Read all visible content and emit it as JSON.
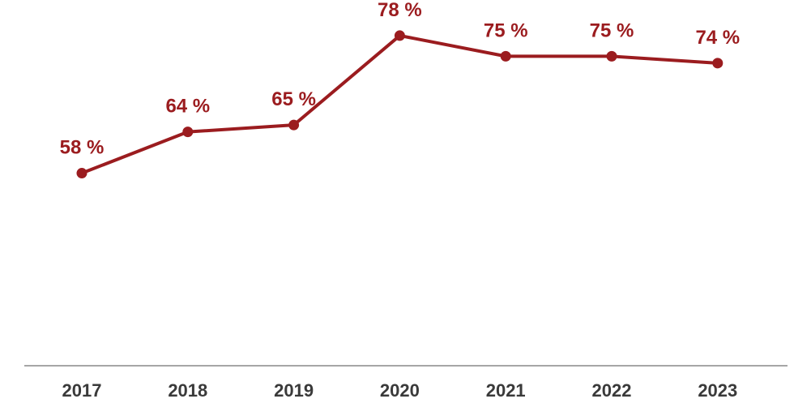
{
  "chart_data": {
    "type": "line",
    "categories": [
      "2017",
      "2018",
      "2019",
      "2020",
      "2021",
      "2022",
      "2023"
    ],
    "values": [
      58,
      64,
      65,
      78,
      75,
      75,
      74
    ],
    "data_labels": [
      "58 %",
      "64 %",
      "65 %",
      "78 %",
      "75 %",
      "75 %",
      "74 %"
    ],
    "title": "",
    "xlabel": "",
    "ylabel": "",
    "ylim": [
      30,
      82
    ],
    "grid": false,
    "legend": "none"
  },
  "colors": {
    "series": "#9b1c1f",
    "axis": "#a6a6a6",
    "tick_text": "#3a3a3a"
  }
}
